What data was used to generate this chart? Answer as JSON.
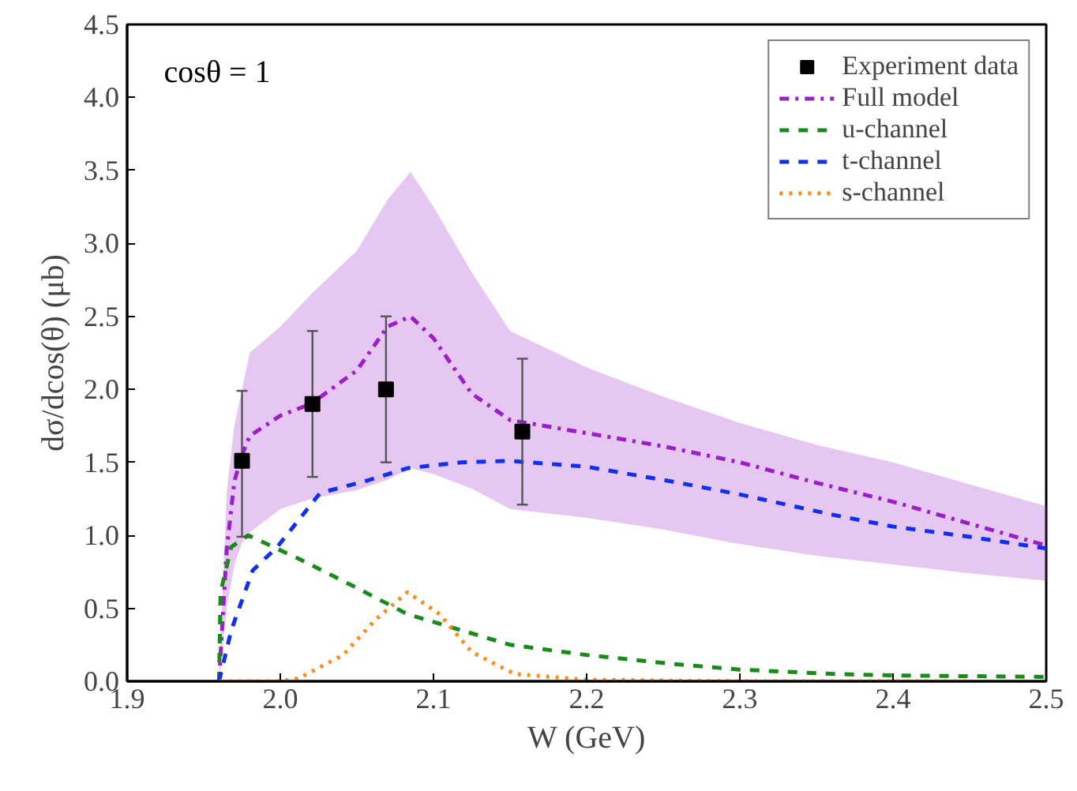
{
  "chart_data": {
    "type": "line",
    "xlabel": "W (GeV)",
    "ylabel": "dσ/dcos(θ) (μb)",
    "annotations": [
      "cosθ = 1"
    ],
    "xlim": [
      1.9,
      2.5
    ],
    "ylim": [
      0,
      4.5
    ],
    "xticks": [
      {
        "value": 1.9,
        "label": "1.9"
      },
      {
        "value": 2.0,
        "label": "2.0"
      },
      {
        "value": 2.1,
        "label": "2.1"
      },
      {
        "value": 2.2,
        "label": "2.2"
      },
      {
        "value": 2.3,
        "label": "2.3"
      },
      {
        "value": 2.4,
        "label": "2.4"
      },
      {
        "value": 2.5,
        "label": "2.5"
      }
    ],
    "yticks": [
      {
        "value": 0,
        "label": "0.0"
      },
      {
        "value": 0.5,
        "label": "0.5"
      },
      {
        "value": 1,
        "label": "1.0"
      },
      {
        "value": 1.5,
        "label": "1.5"
      },
      {
        "value": 2,
        "label": "2.0"
      },
      {
        "value": 2.5,
        "label": "2.5"
      },
      {
        "value": 3,
        "label": "3.0"
      },
      {
        "value": 3.5,
        "label": "3.5"
      },
      {
        "value": 4,
        "label": "4.0"
      },
      {
        "value": 4.5,
        "label": "4.5"
      }
    ],
    "legend": "top right",
    "grid": false,
    "series": [
      {
        "name": "Experiment data",
        "type": "scatter",
        "marker": "square",
        "color": "#000000",
        "x": [
          1.975,
          2.021,
          2.069,
          2.158
        ],
        "values": [
          1.51,
          1.9,
          2.0,
          1.71
        ],
        "errors": [
          [
            0.99,
            1.99
          ],
          [
            1.4,
            2.4
          ],
          [
            1.5,
            2.5
          ],
          [
            1.21,
            2.21
          ]
        ]
      },
      {
        "name": "Full model",
        "line_style": "dashdot",
        "color": "#9b1fc8",
        "x": [
          1.96,
          1.965,
          1.97,
          1.975,
          1.98,
          2.0,
          2.02,
          2.05,
          2.07,
          2.085,
          2.1,
          2.125,
          2.15,
          2.2,
          2.25,
          2.3,
          2.35,
          2.4,
          2.45,
          2.5
        ],
        "values": [
          0,
          0.9,
          1.37,
          1.55,
          1.68,
          1.82,
          1.9,
          2.13,
          2.43,
          2.5,
          2.35,
          1.97,
          1.79,
          1.7,
          1.61,
          1.5,
          1.36,
          1.23,
          1.08,
          0.93
        ],
        "lower": [
          0,
          0.5,
          0.8,
          0.95,
          1.02,
          1.18,
          1.25,
          1.31,
          1.38,
          1.46,
          1.42,
          1.32,
          1.18,
          1.12,
          1.04,
          0.94,
          0.86,
          0.8,
          0.74,
          0.69
        ],
        "upper": [
          0,
          1.3,
          1.75,
          2.0,
          2.25,
          2.43,
          2.65,
          2.95,
          3.3,
          3.49,
          3.25,
          2.8,
          2.4,
          2.15,
          1.95,
          1.77,
          1.62,
          1.5,
          1.35,
          1.2
        ]
      },
      {
        "name": "u-channel",
        "line_style": "dashed",
        "color": "#1a8a1a",
        "x": [
          1.96,
          1.961,
          1.968,
          1.979,
          2.012,
          2.048,
          2.083,
          2.118,
          2.15,
          2.2,
          2.255,
          2.3,
          2.361,
          2.4,
          2.5
        ],
        "values": [
          0,
          0.61,
          0.92,
          1.0,
          0.84,
          0.65,
          0.46,
          0.35,
          0.25,
          0.18,
          0.12,
          0.08,
          0.05,
          0.04,
          0.03
        ]
      },
      {
        "name": "t-channel",
        "line_style": "dashed",
        "color": "#1030f0",
        "x": [
          1.96,
          1.968,
          1.982,
          1.998,
          2.026,
          2.055,
          2.083,
          2.118,
          2.15,
          2.2,
          2.255,
          2.3,
          2.361,
          2.4,
          2.45,
          2.5
        ],
        "values": [
          0,
          0.35,
          0.76,
          0.92,
          1.29,
          1.37,
          1.46,
          1.5,
          1.51,
          1.47,
          1.37,
          1.28,
          1.14,
          1.06,
          0.99,
          0.91
        ]
      },
      {
        "name": "s-channel",
        "line_style": "dotted",
        "color": "#ff8c1a",
        "x": [
          1.96,
          2.0,
          2.012,
          2.041,
          2.062,
          2.083,
          2.104,
          2.125,
          2.153,
          2.2,
          2.3,
          2.45
        ],
        "values": [
          0,
          0,
          0.02,
          0.18,
          0.42,
          0.61,
          0.46,
          0.2,
          0.05,
          0.01,
          0,
          0
        ]
      }
    ]
  }
}
